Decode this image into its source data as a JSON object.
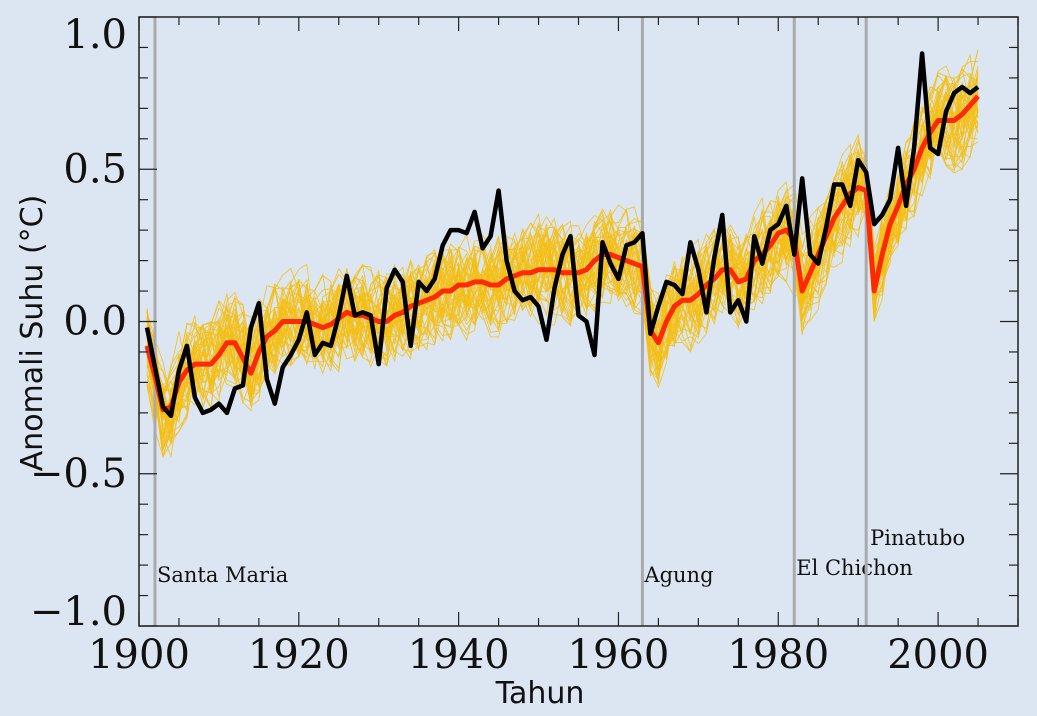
{
  "chart_data": {
    "type": "line",
    "xlabel": "Tahun",
    "ylabel": "Anomali Suhu (°C)",
    "xlim": [
      1900,
      2010
    ],
    "ylim": [
      -1.0,
      1.0
    ],
    "x_ticks": [
      1900,
      1920,
      1940,
      1960,
      1980,
      2000
    ],
    "x_tick_labels": [
      "1900",
      "1920",
      "1940",
      "1960",
      "1980",
      "2000"
    ],
    "y_ticks": [
      1.0,
      0.5,
      0.0,
      -0.5,
      -1.0
    ],
    "y_tick_labels": [
      "1.0",
      "0.5",
      "0.0",
      "−0.5",
      "−1.0"
    ],
    "grid": false,
    "colors": {
      "background": "#dce6f2",
      "observed": "#000000",
      "ensemble_mean": "#ff2a00",
      "ensemble_members": "#f5be12",
      "volcano_lines": "#aaaaaa"
    },
    "volcanoes": [
      {
        "year": 1902,
        "label": "Santa Maria"
      },
      {
        "year": 1963,
        "label": "Agung"
      },
      {
        "year": 1982,
        "label": "El Chichon"
      },
      {
        "year": 1991,
        "label": "Pinatubo"
      }
    ],
    "x": [
      1901,
      1902,
      1903,
      1904,
      1905,
      1906,
      1907,
      1908,
      1909,
      1910,
      1911,
      1912,
      1913,
      1914,
      1915,
      1916,
      1917,
      1918,
      1919,
      1920,
      1921,
      1922,
      1923,
      1924,
      1925,
      1926,
      1927,
      1928,
      1929,
      1930,
      1931,
      1932,
      1933,
      1934,
      1935,
      1936,
      1937,
      1938,
      1939,
      1940,
      1941,
      1942,
      1943,
      1944,
      1945,
      1946,
      1947,
      1948,
      1949,
      1950,
      1951,
      1952,
      1953,
      1954,
      1955,
      1956,
      1957,
      1958,
      1959,
      1960,
      1961,
      1962,
      1963,
      1964,
      1965,
      1966,
      1967,
      1968,
      1969,
      1970,
      1971,
      1972,
      1973,
      1974,
      1975,
      1976,
      1977,
      1978,
      1979,
      1980,
      1981,
      1982,
      1983,
      1984,
      1985,
      1986,
      1987,
      1988,
      1989,
      1990,
      1991,
      1992,
      1993,
      1994,
      1995,
      1996,
      1997,
      1998,
      1999,
      2000,
      2001,
      2002,
      2003,
      2004,
      2005
    ],
    "series": [
      {
        "values": [
          -0.02,
          -0.15,
          -0.28,
          -0.31,
          -0.16,
          -0.08,
          -0.25,
          -0.3,
          -0.29,
          -0.27,
          -0.3,
          -0.22,
          -0.21,
          -0.02,
          0.06,
          -0.19,
          -0.27,
          -0.15,
          -0.11,
          -0.06,
          0.03,
          -0.11,
          -0.07,
          -0.08,
          0.02,
          0.15,
          0.02,
          0.03,
          0.02,
          -0.14,
          0.11,
          0.17,
          0.13,
          -0.08,
          0.13,
          0.1,
          0.14,
          0.25,
          0.3,
          0.3,
          0.29,
          0.36,
          0.24,
          0.28,
          0.43,
          0.2,
          0.1,
          0.07,
          0.08,
          0.05,
          -0.06,
          0.11,
          0.22,
          0.28,
          0.02,
          0.0,
          -0.11,
          0.26,
          0.19,
          0.14,
          0.25,
          0.26,
          0.29,
          -0.04,
          0.05,
          0.13,
          0.12,
          0.09,
          0.26,
          0.17,
          0.03,
          0.21,
          0.35,
          0.03,
          0.07,
          0.0,
          0.28,
          0.19,
          0.3,
          0.32,
          0.38,
          0.22,
          0.47,
          0.22,
          0.19,
          0.31,
          0.45,
          0.45,
          0.38,
          0.53,
          0.49,
          0.32,
          0.35,
          0.4,
          0.57,
          0.38,
          0.57,
          0.88,
          0.57,
          0.55,
          0.69,
          0.75,
          0.77,
          0.75,
          0.77
        ]
      },
      {
        "values": [
          -0.08,
          -0.18,
          -0.29,
          -0.28,
          -0.2,
          -0.16,
          -0.14,
          -0.14,
          -0.14,
          -0.11,
          -0.07,
          -0.07,
          -0.12,
          -0.17,
          -0.1,
          -0.05,
          -0.03,
          0.0,
          0.0,
          0.0,
          0.0,
          -0.01,
          -0.02,
          -0.01,
          0.01,
          0.03,
          0.02,
          0.02,
          0.01,
          0.0,
          0.0,
          0.02,
          0.03,
          0.05,
          0.06,
          0.07,
          0.08,
          0.1,
          0.1,
          0.12,
          0.12,
          0.13,
          0.13,
          0.12,
          0.12,
          0.14,
          0.15,
          0.16,
          0.16,
          0.17,
          0.17,
          0.17,
          0.16,
          0.16,
          0.16,
          0.17,
          0.2,
          0.22,
          0.22,
          0.21,
          0.2,
          0.19,
          0.18,
          -0.03,
          -0.07,
          0.0,
          0.05,
          0.07,
          0.07,
          0.09,
          0.12,
          0.14,
          0.17,
          0.17,
          0.13,
          0.14,
          0.2,
          0.22,
          0.25,
          0.29,
          0.3,
          0.27,
          0.1,
          0.16,
          0.22,
          0.28,
          0.34,
          0.38,
          0.42,
          0.44,
          0.43,
          0.1,
          0.22,
          0.32,
          0.38,
          0.45,
          0.5,
          0.57,
          0.62,
          0.66,
          0.66,
          0.66,
          0.68,
          0.71,
          0.74
        ]
      }
    ]
  }
}
